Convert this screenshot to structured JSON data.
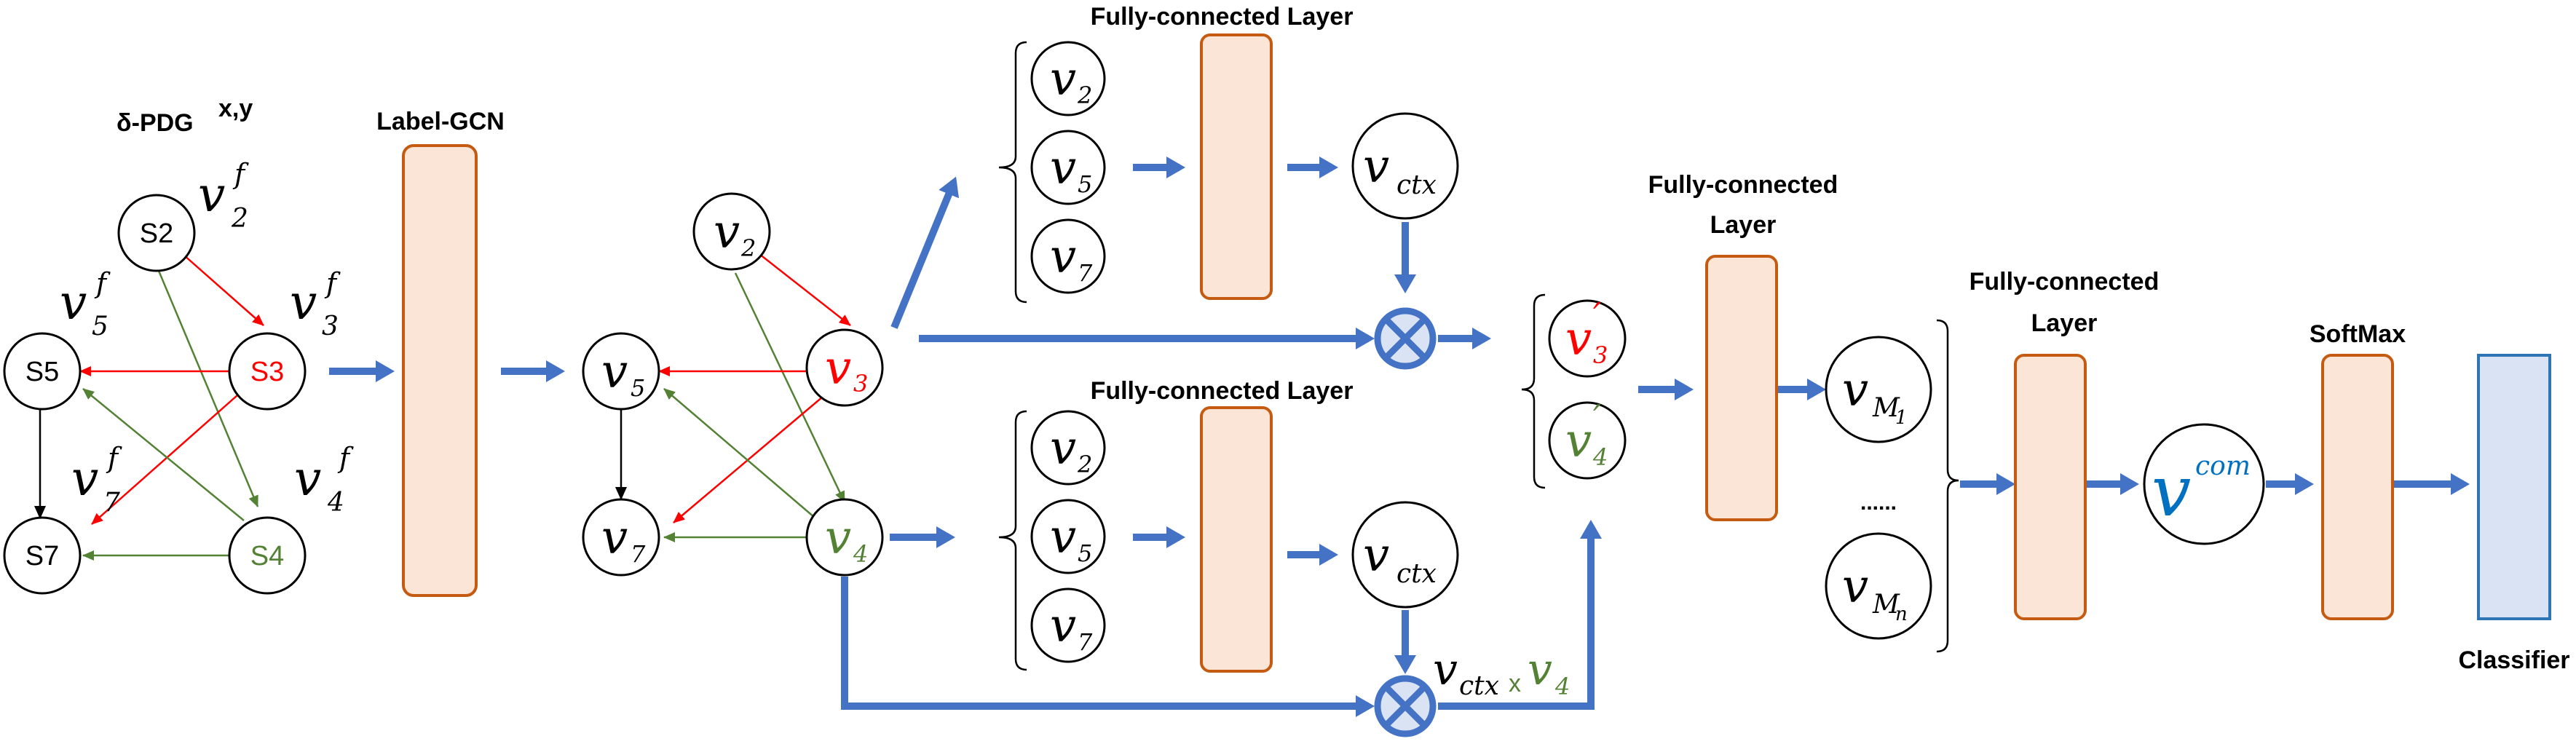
{
  "colors": {
    "blue_arrow": "#4472C4",
    "layer_fill": "#FBE5D6",
    "layer_stroke": "#C55A11",
    "classifier_fill": "#DAE3F3",
    "classifier_stroke": "#2E75B6",
    "red": "#FF0000",
    "green": "#548235",
    "com_blue": "#0070C0"
  },
  "titles": {
    "pdg_base": "δ-PDG",
    "pdg_sup": "x,y",
    "label_gcn": "Label-GCN",
    "fc_top": "Fully-connected Layer",
    "fc_bottom": "Fully-connected Layer",
    "fc_middle_line1": "Fully-connected",
    "fc_middle_line2": "Layer",
    "fc_right_line1": "Fully-connected",
    "fc_right_line2": "Layer",
    "softmax": "SoftMax",
    "classifier": "Classifier"
  },
  "pdg_nodes": {
    "s2": "S2",
    "s3": "S3",
    "s4": "S4",
    "s5": "S5",
    "s7": "S7"
  },
  "feature_labels": {
    "v": "v",
    "f": "f",
    "sub2": "2",
    "sub3": "3",
    "sub4": "4",
    "sub5": "5",
    "sub7": "7"
  },
  "gcn_nodes": {
    "v": "v",
    "sub2": "2",
    "sub3": "3",
    "sub4": "4",
    "sub5": "5",
    "sub7": "7"
  },
  "ctx": {
    "v": "v",
    "sub": "ctx",
    "times": "x",
    "v4": "v",
    "v4_sub": "4"
  },
  "primes": {
    "v": "v",
    "sub3": "3",
    "sub4": "4",
    "prime": "′"
  },
  "m_nodes": {
    "v": "v",
    "m": "M",
    "sub1": "1",
    "subn": "n",
    "dots": "......"
  },
  "com": {
    "v": "v",
    "sup": "com"
  }
}
